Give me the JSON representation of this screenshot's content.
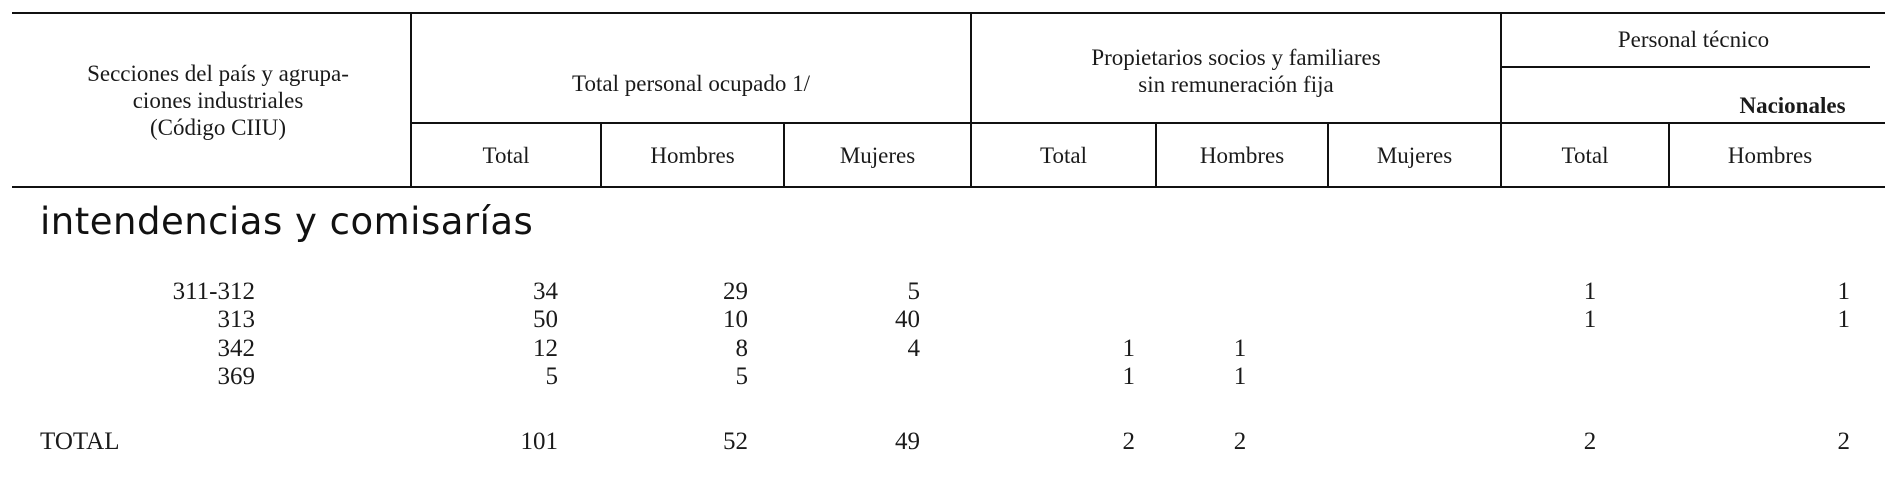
{
  "header": {
    "col_sections": "Secciones del país y agrupa-\nciones industriales\n(Código CIIU)",
    "group_total": "Total personal ocupado 1/",
    "group_propietarios": "Propietarios socios y familiares\nsin remuneración fija",
    "group_tecnico": "Personal técnico",
    "sub_nacionales": "Nacionales",
    "sub_total": "Total",
    "sub_hombres": "Hombres",
    "sub_mujeres": "Mujeres"
  },
  "section_title": "intendencias y comisarías",
  "rows": [
    {
      "code": "311-312",
      "tot": "34",
      "tot_h": "29",
      "tot_m": "5",
      "prop": "",
      "prop_h": "",
      "prop_m": "",
      "tec": "1",
      "tec_h": "1"
    },
    {
      "code": "313",
      "tot": "50",
      "tot_h": "10",
      "tot_m": "40",
      "prop": "",
      "prop_h": "",
      "prop_m": "",
      "tec": "1",
      "tec_h": "1"
    },
    {
      "code": "342",
      "tot": "12",
      "tot_h": "8",
      "tot_m": "4",
      "prop": "1",
      "prop_h": "1",
      "prop_m": "",
      "tec": "",
      "tec_h": ""
    },
    {
      "code": "369",
      "tot": "5",
      "tot_h": "5",
      "tot_m": "",
      "prop": "1",
      "prop_h": "1",
      "prop_m": "",
      "tec": "",
      "tec_h": ""
    }
  ],
  "total_row": {
    "label": "TOTAL",
    "tot": "101",
    "tot_h": "52",
    "tot_m": "49",
    "prop": "2",
    "prop_h": "2",
    "prop_m": "",
    "tec": "2",
    "tec_h": "2"
  }
}
